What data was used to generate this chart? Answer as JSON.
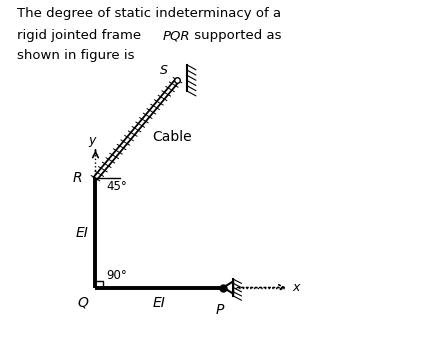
{
  "bg_color": "#ffffff",
  "frame_color": "#000000",
  "Q": [
    0.13,
    0.13
  ],
  "P": [
    0.52,
    0.13
  ],
  "R": [
    0.13,
    0.52
  ],
  "S": [
    0.38,
    0.87
  ],
  "label_Q": "Q",
  "label_P": "P",
  "label_R": "R",
  "label_S": "S",
  "label_EI_vertical": "EI",
  "label_EI_horizontal": "EI",
  "label_45": "45°",
  "label_90": "90°",
  "label_x": "x",
  "label_y": "y",
  "label_cable": "Cable",
  "title_line1": "The degree of static indeterminacy of a",
  "title_line2_pre": "rigid jointed frame ",
  "title_line2_italic": "PQR",
  "title_line2_post": " supported as",
  "title_line3": "shown in figure is"
}
